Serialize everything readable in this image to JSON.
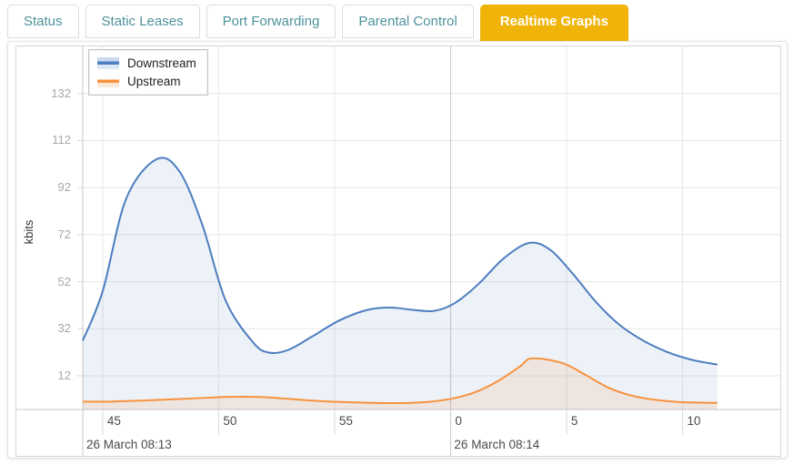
{
  "tabs": {
    "items": [
      {
        "label": "Status",
        "active": false
      },
      {
        "label": "Static Leases",
        "active": false
      },
      {
        "label": "Port Forwarding",
        "active": false
      },
      {
        "label": "Parental Control",
        "active": false
      },
      {
        "label": "Realtime Graphs",
        "active": true
      }
    ]
  },
  "colors": {
    "active_tab_bg": "#f0b408",
    "tab_text": "#4e939c",
    "downstream_line": "#4d7ebf",
    "downstream_fill": "rgba(77,126,191,0.10)",
    "upstream_line": "#f7923d",
    "upstream_fill": "rgba(247,146,61,0.13)",
    "gridline": "#e7e7e7",
    "axis_line": "#c9c9c9"
  },
  "chart_data": {
    "type": "area",
    "title": "",
    "xlabel": "",
    "ylabel": "kbits",
    "ylim": [
      0,
      152
    ],
    "grid": true,
    "legend_position": "top-left",
    "y_ticks": [
      12,
      32,
      52,
      72,
      92,
      112,
      132
    ],
    "x_ticks": [
      {
        "t": 45,
        "label": "45"
      },
      {
        "t": 50,
        "label": "50"
      },
      {
        "t": 55,
        "label": "55"
      },
      {
        "t": 60,
        "label": "0"
      },
      {
        "t": 65,
        "label": "5"
      },
      {
        "t": 70,
        "label": "10"
      }
    ],
    "x_separator_t": 60,
    "x_date_labels": [
      {
        "anchor": "start",
        "label": "26 March 08:13"
      },
      {
        "anchor": 60,
        "label": "26 March 08:14"
      }
    ],
    "x_range_t": [
      44.14,
      74.25
    ],
    "series": [
      {
        "name": "Downstream",
        "color": "#4d7ebf",
        "fill": "rgba(77,126,191,0.10)",
        "points_t_kbits": [
          [
            44.14,
            27
          ],
          [
            45,
            48
          ],
          [
            46,
            87
          ],
          [
            47.3,
            104
          ],
          [
            48.3,
            99
          ],
          [
            49.3,
            76
          ],
          [
            50.3,
            44
          ],
          [
            51.5,
            26
          ],
          [
            52.2,
            21.8
          ],
          [
            53,
            23
          ],
          [
            54,
            28.5
          ],
          [
            55.2,
            35.5
          ],
          [
            56.4,
            40
          ],
          [
            57.4,
            41
          ],
          [
            58.4,
            40
          ],
          [
            59.3,
            39.6
          ],
          [
            60.2,
            43
          ],
          [
            61.2,
            51
          ],
          [
            62.3,
            62
          ],
          [
            63.4,
            68.5
          ],
          [
            64.3,
            65.5
          ],
          [
            65.3,
            55
          ],
          [
            66.3,
            43
          ],
          [
            67.3,
            33.5
          ],
          [
            68.3,
            27
          ],
          [
            69.3,
            22.3
          ],
          [
            70.4,
            18.8
          ],
          [
            71.5,
            16.8
          ]
        ]
      },
      {
        "name": "Upstream",
        "color": "#f7923d",
        "fill": "rgba(247,146,61,0.13)",
        "points_t_kbits": [
          [
            44.14,
            1
          ],
          [
            45.5,
            1.1
          ],
          [
            47,
            1.6
          ],
          [
            48.5,
            2.2
          ],
          [
            50,
            2.9
          ],
          [
            51,
            3.1
          ],
          [
            52,
            2.9
          ],
          [
            53,
            2.2
          ],
          [
            54.3,
            1.3
          ],
          [
            55.5,
            0.8
          ],
          [
            56.6,
            0.5
          ],
          [
            57.8,
            0.4
          ],
          [
            59,
            0.9
          ],
          [
            60,
            2.2
          ],
          [
            61,
            4.8
          ],
          [
            62,
            9.5
          ],
          [
            63,
            16
          ],
          [
            63.5,
            19.4
          ],
          [
            64.8,
            17.5
          ],
          [
            65.8,
            12.5
          ],
          [
            66.8,
            7
          ],
          [
            67.8,
            3.6
          ],
          [
            68.8,
            1.8
          ],
          [
            69.8,
            0.9
          ],
          [
            70.6,
            0.6
          ],
          [
            71.5,
            0.5
          ]
        ]
      }
    ]
  }
}
